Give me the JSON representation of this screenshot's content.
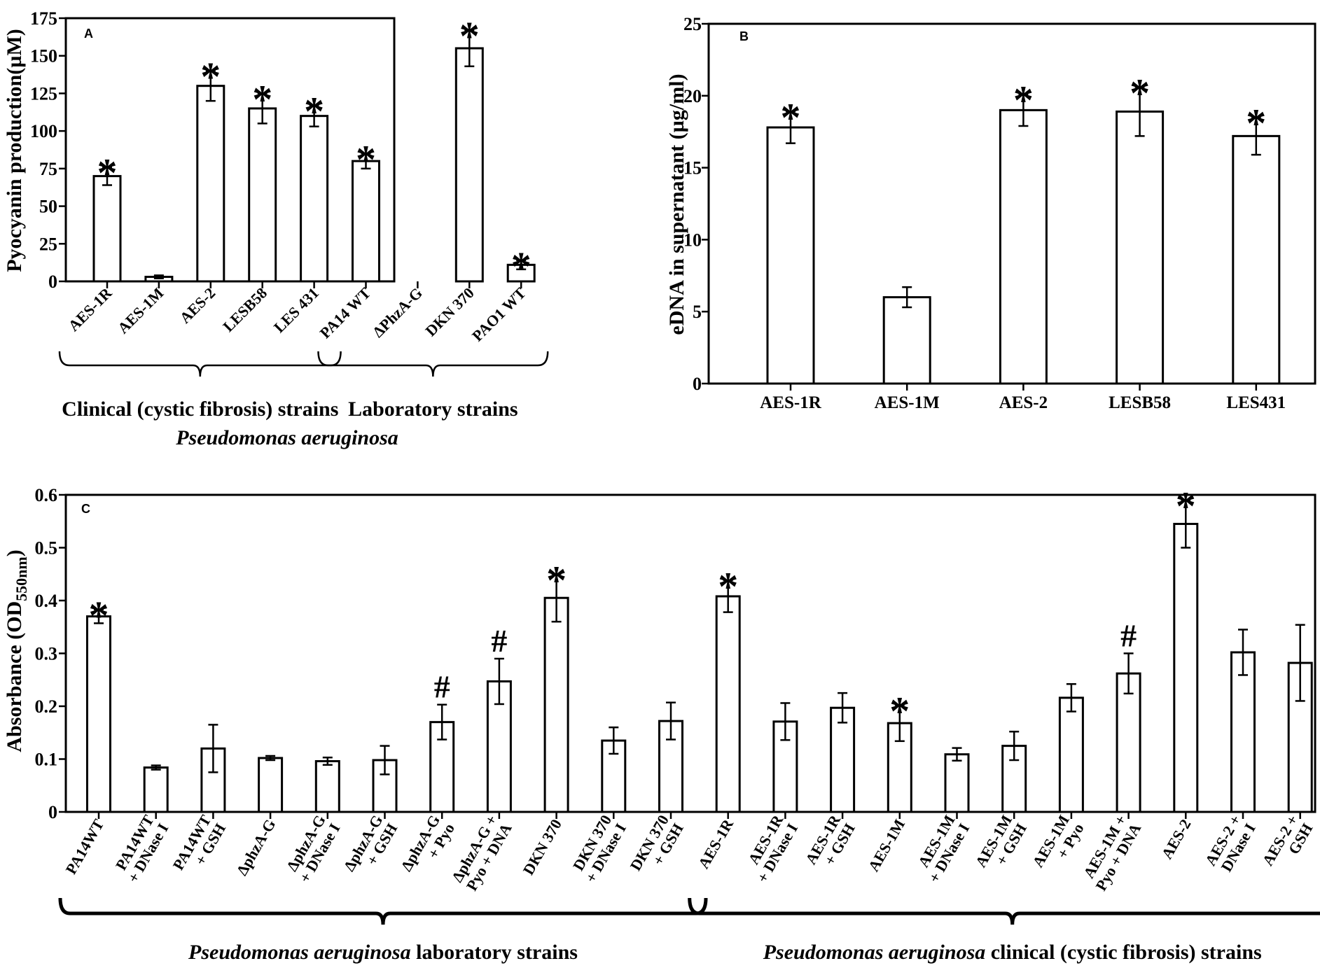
{
  "chart_data": [
    {
      "id": "A",
      "type": "bar",
      "panel_label": "A",
      "ylabel": "Pyocyanin production(µM)",
      "ylim": [
        0,
        175
      ],
      "yticks": [
        "0",
        "25",
        "50",
        "75",
        "100",
        "125",
        "150",
        "175"
      ],
      "categories": [
        "AES-1R",
        "AES-1M",
        "AES-2",
        "LESB58",
        "LES 431",
        "PA14 WT",
        "ΔPhzA-G",
        "DKN 370",
        "PAO1 WT"
      ],
      "values": [
        70,
        3,
        130,
        115,
        110,
        80,
        0,
        155,
        11
      ],
      "errors": [
        6,
        1,
        10,
        10,
        7,
        5,
        0,
        12,
        3
      ],
      "significance": [
        "*",
        "",
        "*",
        "*",
        "*",
        "*",
        "",
        "*",
        "*"
      ],
      "groups": [
        {
          "label": "Clinical (cystic fibrosis) strains",
          "start": 0,
          "end": 4
        },
        {
          "label": "Laboratory  strains",
          "start": 5,
          "end": 8
        }
      ],
      "xlabel": "Pseudomonas  aeruginosa"
    },
    {
      "id": "B",
      "type": "bar",
      "panel_label": "B",
      "ylabel": "eDNA in supernatant  (µg/ml)",
      "ylim": [
        0,
        25
      ],
      "yticks": [
        "0",
        "5",
        "10",
        "15",
        "20",
        "25"
      ],
      "categories": [
        "AES-1R",
        "AES-1M",
        "AES-2",
        "LESB58",
        "LES431"
      ],
      "values": [
        17.8,
        6.0,
        19.0,
        18.9,
        17.2
      ],
      "errors": [
        1.1,
        0.7,
        1.1,
        1.7,
        1.3
      ],
      "significance": [
        "*",
        "",
        "*",
        "*",
        "*"
      ]
    },
    {
      "id": "C",
      "type": "bar",
      "panel_label": "C",
      "ylabel_main": "Absorbance  (OD",
      "ylabel_sub": "550nm",
      "ylabel_close": ")",
      "ylim": [
        0,
        0.6
      ],
      "yticks": [
        "0",
        "0.1",
        "0.2",
        "0.3",
        "0.4",
        "0.5",
        "0.6"
      ],
      "categories": [
        [
          "PA14WT"
        ],
        [
          "PA14WT",
          "+ DNase I"
        ],
        [
          "PA14WT",
          "+ GSH"
        ],
        [
          "ΔphzA-G"
        ],
        [
          "ΔphzA-G",
          "+ DNase I"
        ],
        [
          "ΔphzA-G",
          "+ GSH"
        ],
        [
          "ΔphzA-G",
          "+ Pyo"
        ],
        [
          "ΔphzA-G +",
          "Pyo + DNA"
        ],
        [
          "DKN 370"
        ],
        [
          "DKN 370",
          "+ DNase I"
        ],
        [
          "DKN 370",
          "+ GSH"
        ],
        [
          "AES-1R"
        ],
        [
          "AES-1R",
          "+ DNase I"
        ],
        [
          "AES-1R",
          "+ GSH"
        ],
        [
          "AES-1M"
        ],
        [
          "AES-1M",
          "+ DNase I"
        ],
        [
          "AES-1M",
          "+ GSH"
        ],
        [
          "AES-1M",
          "+ Pyo"
        ],
        [
          "AES-1M +",
          "Pyo + DNA"
        ],
        [
          "AES-2"
        ],
        [
          "AES-2 +",
          "DNase I"
        ],
        [
          "AES-2 +",
          "GSH"
        ]
      ],
      "values": [
        0.37,
        0.084,
        0.12,
        0.102,
        0.096,
        0.098,
        0.17,
        0.247,
        0.405,
        0.135,
        0.172,
        0.408,
        0.171,
        0.197,
        0.168,
        0.109,
        0.125,
        0.216,
        0.262,
        0.545,
        0.302,
        0.282
      ],
      "errors": [
        0.013,
        0.004,
        0.045,
        0.004,
        0.007,
        0.027,
        0.033,
        0.043,
        0.045,
        0.025,
        0.035,
        0.03,
        0.035,
        0.028,
        0.034,
        0.012,
        0.027,
        0.026,
        0.038,
        0.045,
        0.043,
        0.072
      ],
      "significance": [
        "*",
        "",
        "",
        "",
        "",
        "",
        "#",
        "#",
        "*",
        "",
        "",
        "*",
        "",
        "",
        "*",
        "",
        "",
        "",
        "#",
        "*",
        "",
        ""
      ],
      "groups": [
        {
          "prefix": "Pseudomonas aeruginosa",
          "suffix": " laboratory  strains",
          "start": 0,
          "end": 10
        },
        {
          "prefix": "Pseudomonas aeruginosa",
          "suffix": " clinical (cystic fibrosis) strains",
          "start": 11,
          "end": 21
        }
      ]
    }
  ]
}
